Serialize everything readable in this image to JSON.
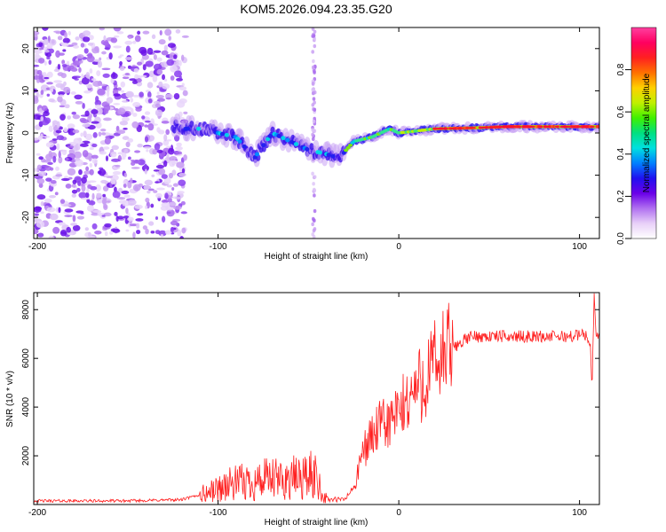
{
  "title": "KOM5.2026.094.23.35.G20",
  "chart_data": [
    {
      "type": "heatmap",
      "xlabel": "Height of straight line (km)",
      "ylabel": "Frequency (Hz)",
      "xlim": [
        -202,
        111
      ],
      "ylim": [
        -25,
        25
      ],
      "xticks": [
        -200,
        -100,
        0,
        100
      ],
      "yticks": [
        -20,
        -10,
        0,
        10,
        20
      ],
      "colorbar": {
        "label": "Normalized spectral amplitude",
        "range": [
          0,
          1
        ],
        "ticks": [
          "0.0",
          "0.2",
          "0.4",
          "0.6",
          "0.8"
        ],
        "colormap": [
          "#ffffff",
          "#e8d0f8",
          "#b070f0",
          "#6a00e8",
          "#2010f0",
          "#0080ff",
          "#00e0e0",
          "#00e080",
          "#40f000",
          "#c0f000",
          "#ffd000",
          "#ff7000",
          "#ff2020",
          "#ff0060",
          "#ff40a0"
        ]
      },
      "ridge": {
        "description_points_height_km": [
          -120,
          -110,
          -100,
          -90,
          -80,
          -70,
          -60,
          -50,
          -40,
          -33,
          -25,
          -15,
          -5,
          0,
          10,
          20,
          40,
          60,
          80,
          100,
          111
        ],
        "description_points_freq_hz": [
          1,
          1,
          0,
          -1,
          -6,
          0,
          -2,
          -4,
          -5,
          -6,
          -2,
          -1,
          1,
          0,
          0.5,
          1,
          1.2,
          1.5,
          1.5,
          1.5,
          1.5
        ]
      },
      "noise_region_km": [
        -200,
        -120
      ],
      "vertical_streak_km": -47
    },
    {
      "type": "line",
      "xlabel": "Height of straight line (km)",
      "ylabel": "SNR (10 * v/v)",
      "xlim": [
        -202,
        111
      ],
      "ylim": [
        0,
        8700
      ],
      "xticks": [
        -200,
        -100,
        0,
        100
      ],
      "yticks": [
        2000,
        4000,
        6000,
        8000
      ],
      "color": "#ff2020",
      "series": [
        {
          "name": "SNR",
          "x": [
            -200,
            -150,
            -120,
            -105,
            -95,
            -85,
            -75,
            -65,
            -55,
            -45,
            -42,
            -38,
            -30,
            -24,
            -20,
            -15,
            -10,
            -5,
            0,
            5,
            10,
            15,
            20,
            25,
            30,
            35,
            40,
            60,
            80,
            95,
            103,
            106,
            107,
            108,
            109,
            111
          ],
          "values": [
            150,
            150,
            200,
            500,
            800,
            900,
            1000,
            1000,
            1100,
            1200,
            300,
            200,
            200,
            800,
            2200,
            2800,
            3200,
            3400,
            3700,
            4300,
            4800,
            5200,
            5700,
            6100,
            6400,
            6700,
            6900,
            6900,
            6900,
            6900,
            7000,
            6500,
            4800,
            8600,
            7000,
            7000
          ]
        }
      ]
    }
  ]
}
